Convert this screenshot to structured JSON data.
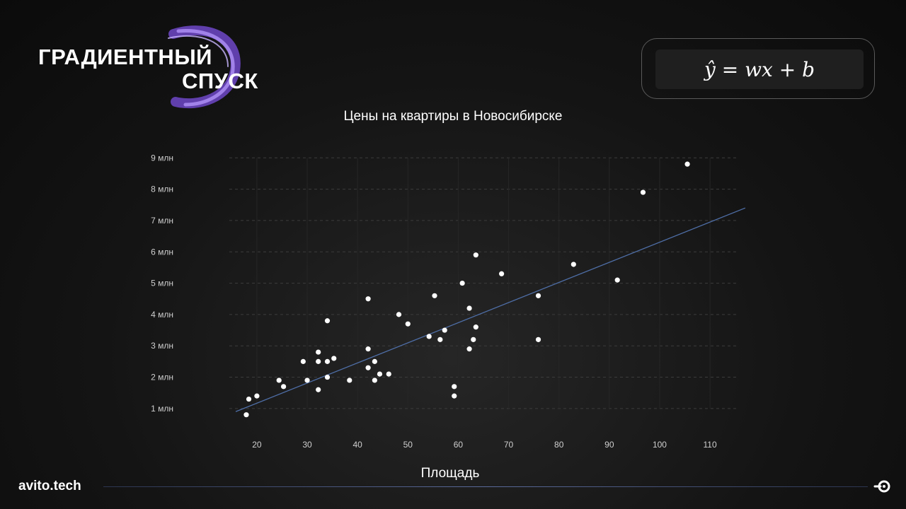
{
  "header": {
    "logo_line1": "ГРАДИЕНТНЫЙ",
    "logo_line2": "СПУСК",
    "formula": "ŷ = wx + b"
  },
  "footer": {
    "brand": "avito.tech",
    "corner_icon": "avito-logo-icon"
  },
  "colors": {
    "background": "#141414",
    "regression_line": "#4f6fa8",
    "points": "#ffffff",
    "logo_swoosh": "#8a62e0"
  },
  "chart_data": {
    "type": "scatter",
    "title": "Цены на квартиры в Новосибирске",
    "xlabel": "Площадь",
    "ylabel": "",
    "xlim": [
      12,
      118
    ],
    "ylim": [
      0.5,
      9.3
    ],
    "x_ticks": [
      20,
      30,
      40,
      50,
      60,
      70,
      80,
      90,
      100,
      110
    ],
    "x_tick_labels": [
      "20",
      "30",
      "40",
      "50",
      "60",
      "70",
      "80",
      "90",
      "100",
      "110"
    ],
    "y_ticks": [
      1,
      2,
      3,
      4,
      5,
      6,
      7,
      8,
      9
    ],
    "y_tick_labels": [
      "1 млн",
      "2 млн",
      "3 млн",
      "4 млн",
      "5 млн",
      "6 млн",
      "7 млн",
      "8 млн",
      "9 млн"
    ],
    "grid": true,
    "points": [
      [
        17.9,
        0.8
      ],
      [
        18.4,
        1.3
      ],
      [
        20.0,
        1.4
      ],
      [
        24.4,
        1.9
      ],
      [
        25.3,
        1.7
      ],
      [
        29.2,
        2.5
      ],
      [
        30.0,
        1.9
      ],
      [
        32.2,
        2.5
      ],
      [
        32.2,
        2.8
      ],
      [
        32.2,
        1.6
      ],
      [
        34.0,
        2.0
      ],
      [
        34.0,
        2.5
      ],
      [
        34.0,
        3.8
      ],
      [
        35.3,
        2.6
      ],
      [
        38.4,
        1.9
      ],
      [
        42.1,
        2.3
      ],
      [
        42.1,
        2.9
      ],
      [
        42.1,
        4.5
      ],
      [
        43.4,
        1.9
      ],
      [
        43.4,
        2.5
      ],
      [
        44.4,
        2.1
      ],
      [
        46.2,
        2.1
      ],
      [
        48.2,
        4.0
      ],
      [
        50.0,
        3.7
      ],
      [
        54.2,
        3.3
      ],
      [
        55.3,
        4.6
      ],
      [
        56.4,
        3.2
      ],
      [
        57.3,
        3.5
      ],
      [
        59.2,
        1.7
      ],
      [
        59.2,
        1.4
      ],
      [
        60.8,
        5.0
      ],
      [
        62.2,
        4.2
      ],
      [
        62.2,
        2.9
      ],
      [
        63.0,
        3.2
      ],
      [
        63.5,
        5.9
      ],
      [
        63.5,
        3.6
      ],
      [
        68.6,
        5.3
      ],
      [
        75.9,
        4.6
      ],
      [
        75.9,
        3.2
      ],
      [
        82.9,
        5.6
      ],
      [
        91.6,
        5.1
      ],
      [
        96.7,
        7.9
      ],
      [
        105.5,
        8.8
      ]
    ],
    "regression_line": {
      "x": [
        15.8,
        117.0
      ],
      "y": [
        0.9,
        7.4
      ]
    },
    "legend": "none"
  }
}
